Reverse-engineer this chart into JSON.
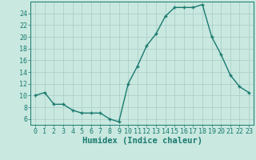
{
  "x": [
    0,
    1,
    2,
    3,
    4,
    5,
    6,
    7,
    8,
    9,
    10,
    11,
    12,
    13,
    14,
    15,
    16,
    17,
    18,
    19,
    20,
    21,
    22,
    23
  ],
  "y": [
    10,
    10.5,
    8.5,
    8.5,
    7.5,
    7,
    7,
    7,
    6,
    5.5,
    12,
    15,
    18.5,
    20.5,
    23.5,
    25,
    25,
    25,
    25.5,
    20,
    17,
    13.5,
    11.5,
    10.5
  ],
  "line_color": "#1a7a6e",
  "marker_color": "#1a7a6e",
  "bg_color": "#c8e8e0",
  "grid_color": "#a8ccc4",
  "xlabel": "Humidex (Indice chaleur)",
  "xlim": [
    -0.5,
    23.5
  ],
  "ylim": [
    5,
    26
  ],
  "yticks": [
    6,
    8,
    10,
    12,
    14,
    16,
    18,
    20,
    22,
    24
  ],
  "xticks": [
    0,
    1,
    2,
    3,
    4,
    5,
    6,
    7,
    8,
    9,
    10,
    11,
    12,
    13,
    14,
    15,
    16,
    17,
    18,
    19,
    20,
    21,
    22,
    23
  ],
  "tick_color": "#1a7a6e",
  "xlabel_color": "#1a7a6e",
  "xlabel_fontsize": 7.5,
  "tick_fontsize": 6.0
}
